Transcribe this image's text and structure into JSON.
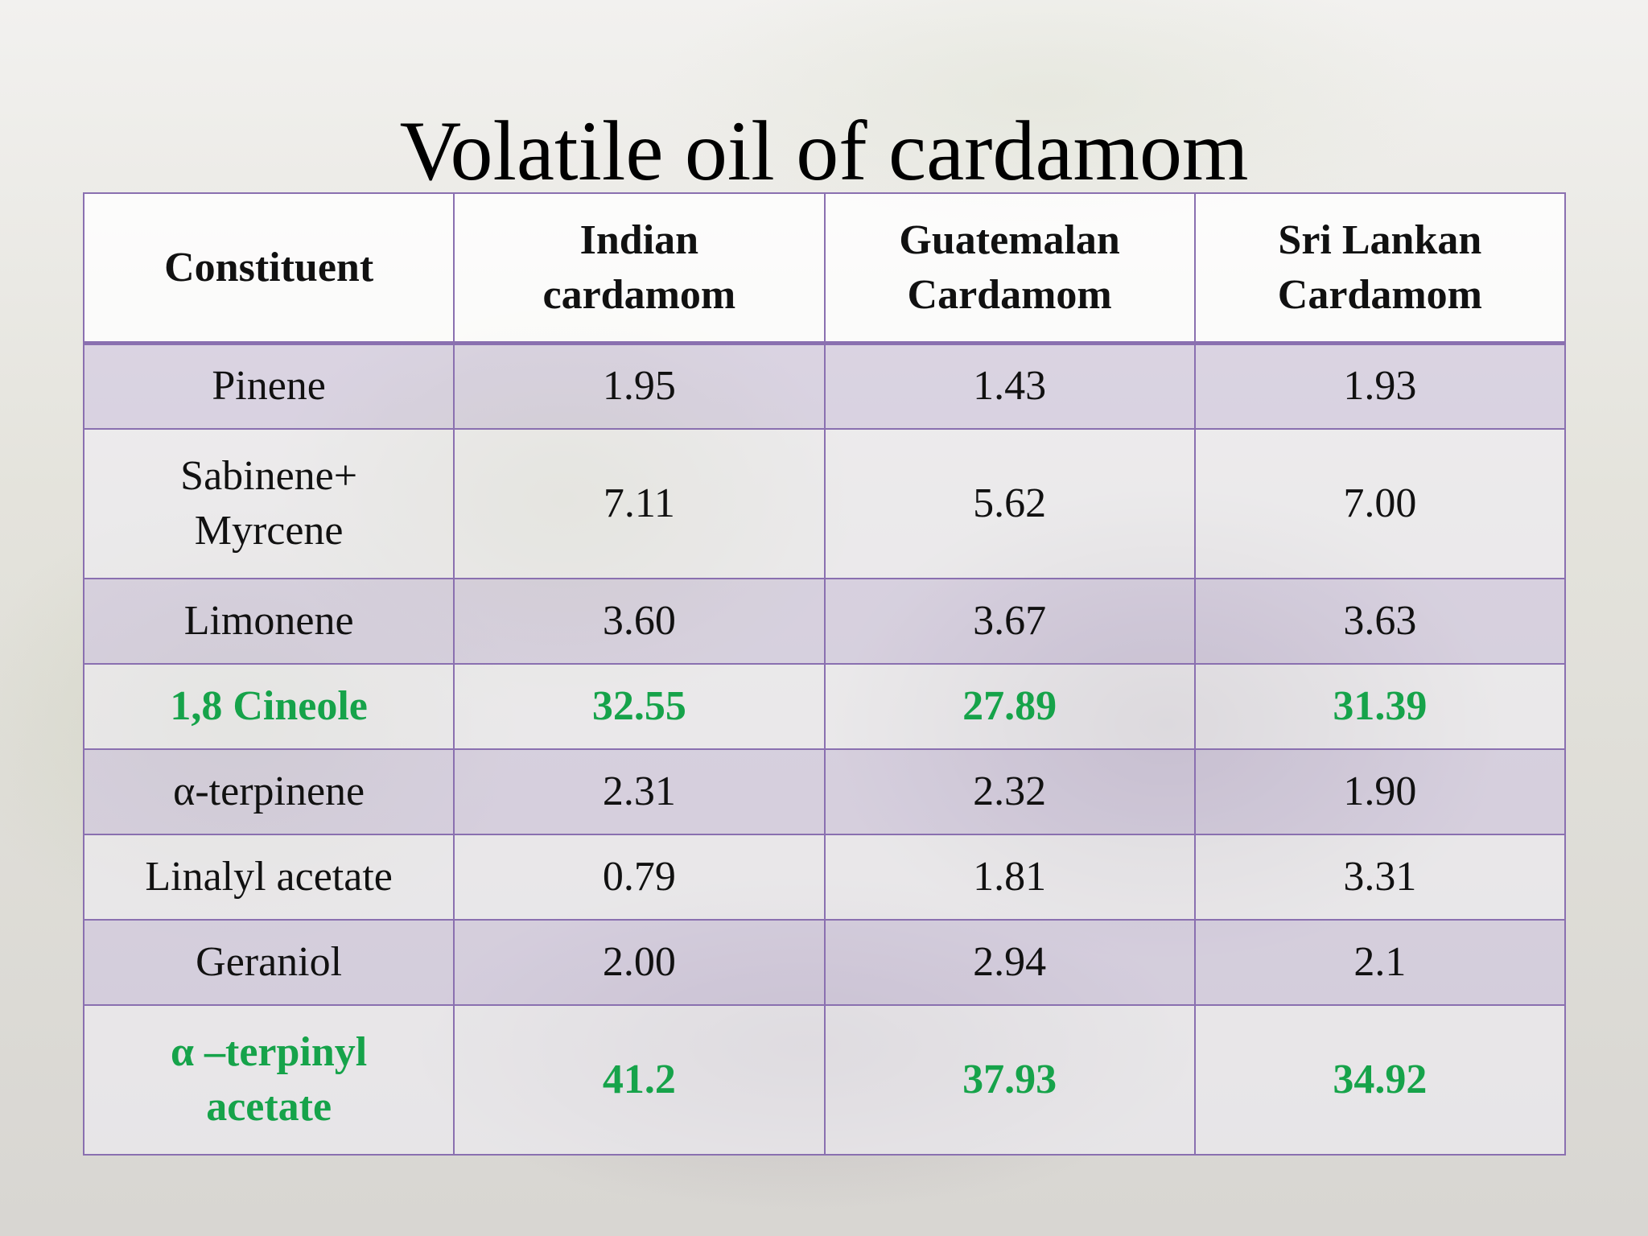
{
  "title": "Volatile oil of cardamom",
  "table": {
    "header": [
      "Constituent",
      "Indian\ncardamom",
      "Guatemalan\nCardamom",
      "Sri Lankan\nCardamom"
    ],
    "rows": [
      [
        "Pinene",
        "1.95",
        "1.43",
        "1.93"
      ],
      [
        "Sabinene+\nMyrcene",
        "7.11",
        "5.62",
        "7.00"
      ],
      [
        "Limonene",
        "3.60",
        "3.67",
        "3.63"
      ],
      [
        "1,8 Cineole",
        "32.55",
        "27.89",
        "31.39"
      ],
      [
        "α-terpinene",
        "2.31",
        "2.32",
        "1.90"
      ],
      [
        "Linalyl acetate",
        "0.79",
        "1.81",
        "3.31"
      ],
      [
        "Geraniol",
        "2.00",
        "2.94",
        "2.1"
      ],
      [
        "α –terpinyl\nacetate",
        "41.2",
        "37.93",
        "34.92"
      ]
    ]
  }
}
